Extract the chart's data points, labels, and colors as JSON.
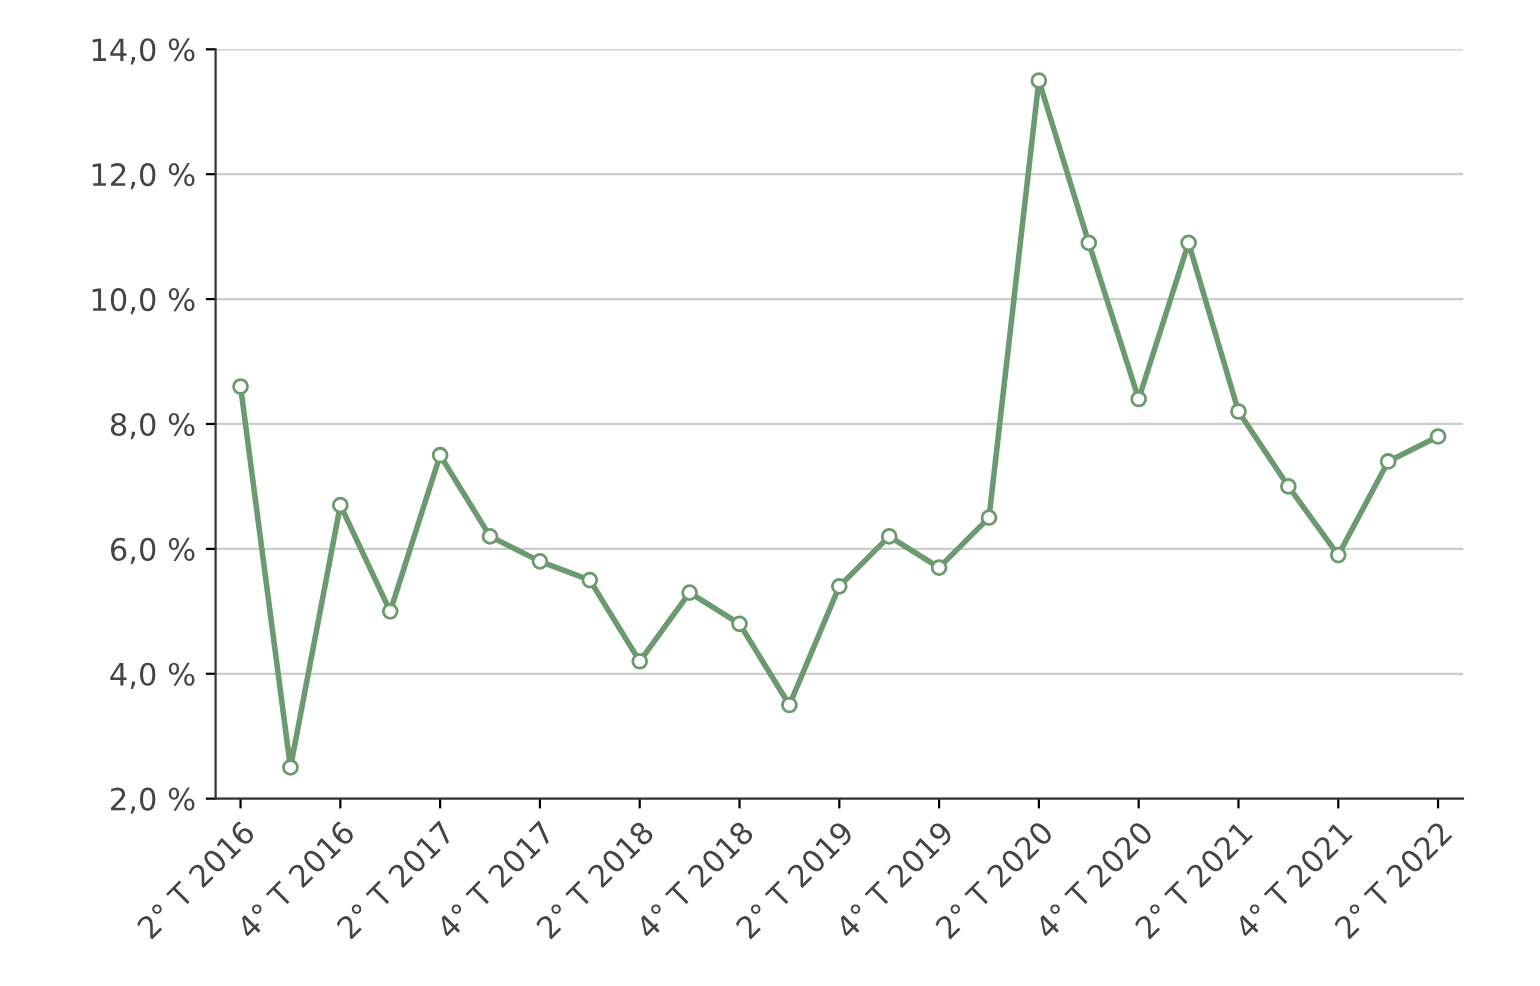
{
  "chart_data": {
    "type": "line",
    "categories": [
      "2° T 2016",
      null,
      "4° T 2016",
      null,
      "2° T 2017",
      null,
      "4° T 2017",
      null,
      "2° T 2018",
      null,
      "4° T 2018",
      null,
      "2° T 2019",
      null,
      "4° T 2019",
      null,
      "2° T 2020",
      null,
      "4° T 2020",
      null,
      "2° T 2021",
      null,
      "4° T 2021",
      null,
      "2° T 2022"
    ],
    "series": [
      {
        "color": "#6b9a6e",
        "values": [
          8.6,
          2.5,
          6.7,
          5.0,
          7.5,
          6.2,
          5.8,
          5.5,
          4.2,
          5.3,
          4.8,
          3.5,
          5.4,
          6.2,
          5.7,
          6.5,
          13.5,
          10.9,
          8.4,
          10.9,
          8.2,
          7.0,
          5.9,
          7.4,
          7.8
        ]
      }
    ],
    "ylim": [
      2,
      14
    ],
    "yticks": [
      {
        "value": 2,
        "label": "2,0 %"
      },
      {
        "value": 4,
        "label": "4,0 %"
      },
      {
        "value": 6,
        "label": "6,0 %"
      },
      {
        "value": 8,
        "label": "8,0 %"
      },
      {
        "value": 10,
        "label": "10,0 %"
      },
      {
        "value": 12,
        "label": "12,0 %"
      },
      {
        "value": 14,
        "label": "14,0 %"
      }
    ],
    "grid": "y",
    "marker": "circle",
    "line_style": "solid"
  }
}
